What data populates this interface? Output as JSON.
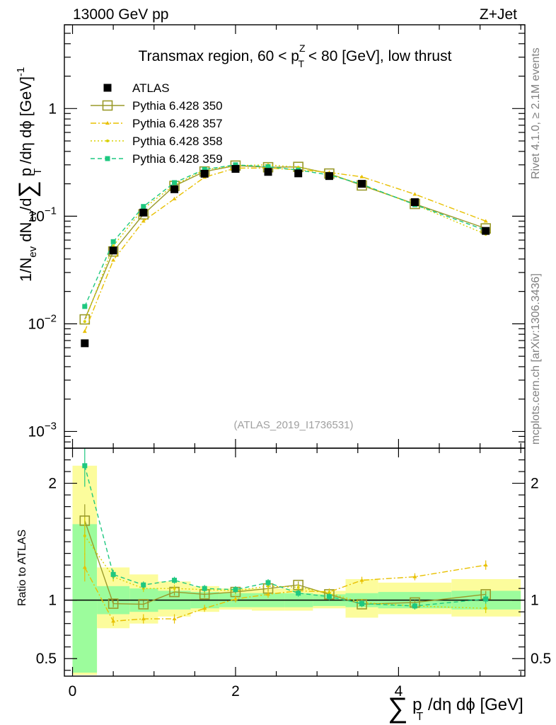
{
  "header": {
    "left": "13000 GeV pp",
    "right": "Z+Jet"
  },
  "plot_title": {
    "pre": "Transmax region, 60 < p",
    "sup": "Z",
    "sub": "T",
    "post": " < 80 [GeV], low thrust"
  },
  "side_labels": {
    "rivet": "Rivet 4.1.0, ≥ 2.1M events",
    "mcplots": "mcplots.cern.ch [arXiv:1306.3436]"
  },
  "analysis_id": "(ATLAS_2019_I1736531)",
  "axis_labels": {
    "y_main": {
      "part1": "1/N",
      "part1_sub": "ev",
      "part2": " dN",
      "part2_sub": "ev",
      "part3": "/d",
      "sigma": "∑",
      "part4": " p",
      "part4_sub": "T",
      "part5": " /dη dϕ  [GeV]",
      "part5_sup": "-1"
    },
    "y_ratio": "Ratio to ATLAS",
    "x": {
      "sigma": "∑",
      "p": " p",
      "p_sub": "T",
      "rest": " /dη dϕ [GeV]"
    }
  },
  "ticks": {
    "main_y": [
      {
        "value": 1,
        "base": "1",
        "exp": ""
      },
      {
        "value": 0.1,
        "base": "10",
        "exp": "−1"
      },
      {
        "value": 0.01,
        "base": "10",
        "exp": "−2"
      },
      {
        "value": 0.001,
        "base": "10",
        "exp": "−3"
      }
    ],
    "ratio_y": [
      {
        "value": 0.5,
        "label": "0.5"
      },
      {
        "value": 1,
        "label": "1"
      },
      {
        "value": 2,
        "label": "2"
      }
    ],
    "x": [
      {
        "value": 0,
        "label": "0"
      },
      {
        "value": 2,
        "label": "2"
      },
      {
        "value": 4,
        "label": "4"
      }
    ]
  },
  "colors": {
    "data": "#000000",
    "p350": "#9a9a2a",
    "p357": "#e8c000",
    "p358": "#d8d000",
    "p359": "#1ec880",
    "band_inner": "#9cfc9c",
    "band_outer": "#fcfc9c"
  },
  "chart_data": {
    "type": "scatter",
    "log_y": true,
    "xlim": [
      -0.1,
      5.55
    ],
    "ylim_main": [
      0.0007,
      6
    ],
    "ylim_ratio": [
      0.35,
      2.3
    ],
    "bins": [
      {
        "lo": 0.0,
        "hi": 0.3
      },
      {
        "lo": 0.3,
        "hi": 0.7
      },
      {
        "lo": 0.7,
        "hi": 1.05
      },
      {
        "lo": 1.05,
        "hi": 1.45
      },
      {
        "lo": 1.45,
        "hi": 1.8
      },
      {
        "lo": 1.8,
        "hi": 2.2
      },
      {
        "lo": 2.2,
        "hi": 2.6
      },
      {
        "lo": 2.6,
        "hi": 2.95
      },
      {
        "lo": 2.95,
        "hi": 3.35
      },
      {
        "lo": 3.35,
        "hi": 3.75
      },
      {
        "lo": 3.75,
        "hi": 4.65
      },
      {
        "lo": 4.65,
        "hi": 5.5
      }
    ],
    "x": [
      0.15,
      0.5,
      0.87,
      1.25,
      1.62,
      2.0,
      2.4,
      2.77,
      3.15,
      3.55,
      4.2,
      5.07
    ],
    "data": {
      "name": "ATLAS",
      "values": [
        0.0066,
        0.048,
        0.108,
        0.178,
        0.248,
        0.275,
        0.258,
        0.25,
        0.236,
        0.2,
        0.135,
        0.073
      ],
      "band_inner": [
        [
          0.38,
          1.65
        ],
        [
          0.88,
          1.12
        ],
        [
          0.9,
          1.1
        ],
        [
          0.92,
          1.08
        ],
        [
          0.93,
          1.07
        ],
        [
          0.94,
          1.06
        ],
        [
          0.94,
          1.06
        ],
        [
          0.94,
          1.06
        ],
        [
          0.95,
          1.05
        ],
        [
          0.94,
          1.06
        ],
        [
          0.93,
          1.07
        ],
        [
          0.92,
          1.08
        ]
      ],
      "band_outer": [
        [
          0.36,
          2.15
        ],
        [
          0.76,
          1.28
        ],
        [
          0.8,
          1.22
        ],
        [
          0.86,
          1.16
        ],
        [
          0.9,
          1.12
        ],
        [
          0.92,
          1.1
        ],
        [
          0.91,
          1.1
        ],
        [
          0.91,
          1.1
        ],
        [
          0.93,
          1.08
        ],
        [
          0.85,
          1.18
        ],
        [
          0.88,
          1.15
        ],
        [
          0.86,
          1.18
        ]
      ]
    },
    "series": [
      {
        "name": "Pythia 6.428 350",
        "color_key": "p350",
        "line": "solid",
        "marker": "open-square",
        "values": [
          0.011,
          0.047,
          0.104,
          0.191,
          0.26,
          0.295,
          0.285,
          0.287,
          0.249,
          0.193,
          0.13,
          0.077
        ],
        "ratio": [
          1.68,
          0.97,
          0.965,
          1.07,
          1.05,
          1.07,
          1.1,
          1.13,
          1.05,
          0.965,
          0.98,
          1.05
        ],
        "ratio_err": [
          0.14,
          0.03,
          0.03,
          0.03,
          0.03,
          0.02,
          0.02,
          0.03,
          0.02,
          0.02,
          0.02,
          0.03
        ]
      },
      {
        "name": "Pythia 6.428 357",
        "color_key": "p357",
        "line": "dashdot",
        "marker": "small-triangle",
        "values": [
          0.0085,
          0.039,
          0.09,
          0.145,
          0.23,
          0.28,
          0.28,
          0.27,
          0.255,
          0.232,
          0.16,
          0.09
        ],
        "ratio": [
          1.28,
          0.82,
          0.84,
          0.84,
          0.93,
          1.01,
          1.05,
          1.08,
          1.07,
          1.17,
          1.2,
          1.3
        ],
        "ratio_err": [
          0.12,
          0.04,
          0.04,
          0.04,
          0.03,
          0.03,
          0.03,
          0.03,
          0.03,
          0.03,
          0.03,
          0.04
        ]
      },
      {
        "name": "Pythia 6.428 358",
        "color_key": "p358",
        "line": "dotted",
        "marker": "small-dot",
        "values": [
          0.0105,
          0.053,
          0.118,
          0.195,
          0.27,
          0.295,
          0.3,
          0.285,
          0.248,
          0.196,
          0.128,
          0.068
        ],
        "ratio": [
          1.55,
          1.2,
          1.1,
          1.1,
          1.09,
          1.08,
          1.12,
          1.11,
          1.06,
          0.98,
          0.95,
          0.93
        ],
        "ratio_err": [
          0.16,
          0.04,
          0.03,
          0.03,
          0.03,
          0.03,
          0.03,
          0.03,
          0.03,
          0.03,
          0.03,
          0.04
        ]
      },
      {
        "name": "Pythia 6.428 359",
        "color_key": "p359",
        "line": "dashed",
        "marker": "small-square",
        "values": [
          0.0145,
          0.058,
          0.123,
          0.205,
          0.272,
          0.3,
          0.288,
          0.268,
          0.242,
          0.198,
          0.128,
          0.074
        ],
        "ratio": [
          2.15,
          1.22,
          1.13,
          1.17,
          1.1,
          1.09,
          1.15,
          1.06,
          1.03,
          0.97,
          0.95,
          1.01
        ],
        "ratio_err": [
          0.18,
          0.04,
          0.03,
          0.03,
          0.03,
          0.03,
          0.03,
          0.03,
          0.03,
          0.03,
          0.03,
          0.04
        ]
      }
    ]
  }
}
